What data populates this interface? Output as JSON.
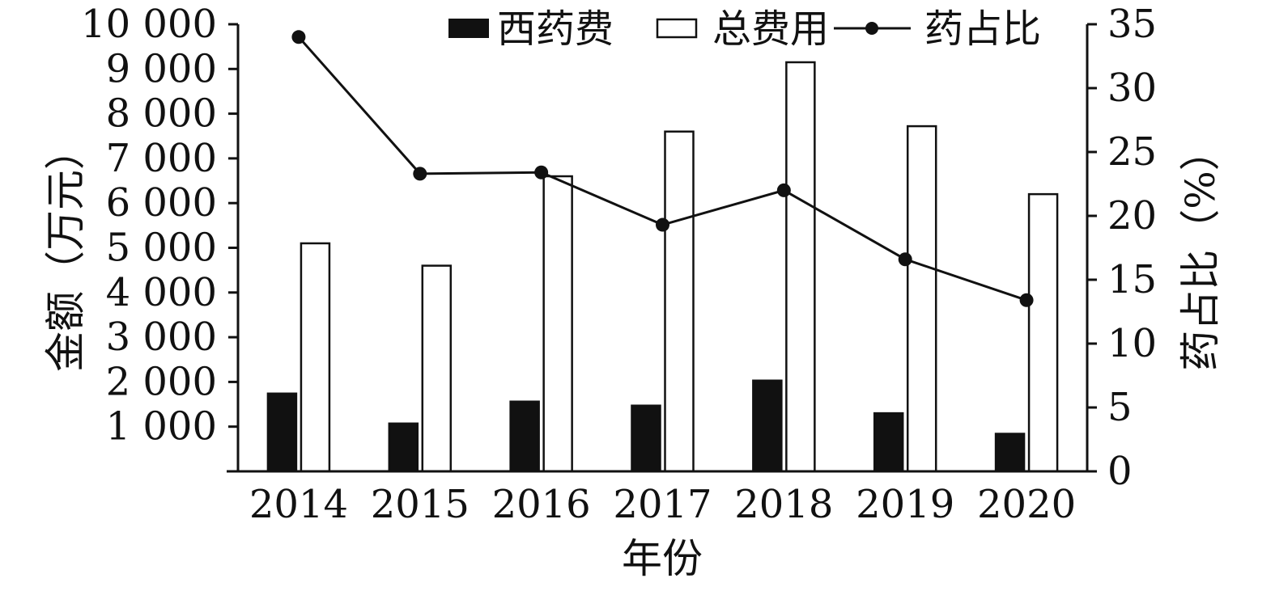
{
  "chart_data": {
    "type": "bar",
    "categories": [
      "2014",
      "2015",
      "2016",
      "2017",
      "2018",
      "2019",
      "2020"
    ],
    "series": [
      {
        "name": "西药费",
        "kind": "bar",
        "axis": "left",
        "color": "#111111",
        "values": [
          1740,
          1070,
          1560,
          1470,
          2030,
          1300,
          840
        ]
      },
      {
        "name": "总费用",
        "kind": "bar",
        "axis": "left",
        "color": "#ffffff",
        "values": [
          5100,
          4600,
          6600,
          7600,
          9150,
          7720,
          6200
        ]
      },
      {
        "name": "药占比",
        "kind": "line",
        "axis": "right",
        "color": "#111111",
        "values": [
          34.0,
          23.3,
          23.4,
          19.3,
          22.0,
          16.6,
          13.4
        ]
      }
    ],
    "xlabel": "年份",
    "ylabel": "金额（万元）",
    "y2label": "药占比（%）",
    "ylim": [
      0,
      10000
    ],
    "y2lim": [
      0,
      35
    ],
    "yticks": [
      "",
      "1 000",
      "2 000",
      "3 000",
      "4 000",
      "5 000",
      "6 000",
      "7 000",
      "8 000",
      "9 000",
      "10 000"
    ],
    "y2ticks": [
      "0",
      "5",
      "10",
      "15",
      "20",
      "25",
      "30",
      "35"
    ],
    "legend": {
      "placement": "top",
      "items": [
        "西药费",
        "总费用",
        "药占比"
      ]
    },
    "grid": false
  }
}
